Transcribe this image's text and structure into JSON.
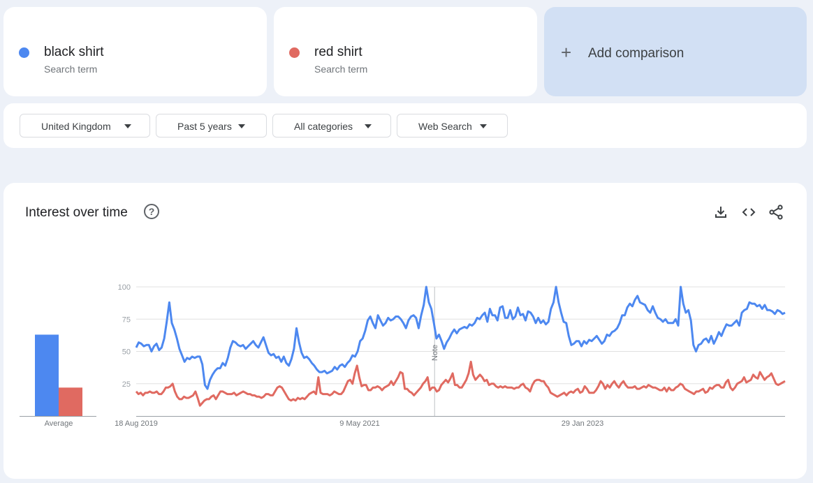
{
  "terms": [
    {
      "name": "black shirt",
      "kind": "Search term",
      "color": "#4d88f0"
    },
    {
      "name": "red shirt",
      "kind": "Search term",
      "color": "#e06a61"
    }
  ],
  "add_comparison": {
    "icon": "plus-icon",
    "label": "Add comparison"
  },
  "filters": {
    "region": "United Kingdom",
    "time": "Past 5 years",
    "category": "All categories",
    "search_type": "Web Search"
  },
  "chart_panel": {
    "title": "Interest over time",
    "help_icon": "help-icon",
    "actions": [
      "download-icon",
      "embed-code-icon",
      "share-icon"
    ]
  },
  "chart_data": [
    {
      "type": "bar",
      "categories": [
        "Average"
      ],
      "series": [
        {
          "name": "black shirt",
          "values": [
            63
          ]
        },
        {
          "name": "red shirt",
          "values": [
            22
          ]
        }
      ],
      "ylim": [
        0,
        100
      ]
    },
    {
      "type": "line",
      "x_tick_labels": [
        "18 Aug 2019",
        "9 May 2021",
        "29 Jan 2023"
      ],
      "y_tick_labels": [
        "25",
        "50",
        "75",
        "100"
      ],
      "ylim": [
        0,
        100
      ],
      "grid": true,
      "annotation": {
        "label": "Note",
        "position": 0.49
      },
      "series": [
        {
          "name": "black shirt",
          "values": [
            53,
            57,
            56,
            54,
            55,
            55,
            50,
            54,
            56,
            51,
            53,
            60,
            73,
            88,
            72,
            67,
            60,
            52,
            47,
            42,
            45,
            44,
            46,
            45,
            46,
            46,
            40,
            24,
            21,
            28,
            32,
            35,
            37,
            37,
            41,
            39,
            45,
            53,
            58,
            57,
            55,
            54,
            55,
            52,
            54,
            56,
            58,
            55,
            53,
            57,
            61,
            55,
            49,
            47,
            48,
            45,
            46,
            42,
            46,
            41,
            39,
            44,
            52,
            68,
            57,
            49,
            45,
            46,
            44,
            41,
            39,
            36,
            34,
            34,
            35,
            33,
            34,
            35,
            38,
            36,
            39,
            40,
            38,
            41,
            43,
            47,
            46,
            50,
            58,
            60,
            66,
            74,
            77,
            72,
            68,
            78,
            74,
            70,
            72,
            76,
            74,
            75,
            77,
            77,
            75,
            72,
            68,
            74,
            77,
            78,
            76,
            68,
            78,
            86,
            100,
            88,
            83,
            72,
            60,
            63,
            58,
            52,
            57,
            60,
            64,
            67,
            64,
            67,
            68,
            69,
            68,
            71,
            70,
            72,
            76,
            75,
            78,
            80,
            73,
            83,
            78,
            78,
            74,
            84,
            85,
            76,
            76,
            82,
            75,
            77,
            84,
            78,
            79,
            74,
            81,
            80,
            77,
            72,
            76,
            72,
            74,
            71,
            73,
            83,
            88,
            100,
            88,
            80,
            73,
            72,
            62,
            55,
            56,
            58,
            58,
            54,
            58,
            56,
            59,
            58,
            60,
            62,
            59,
            56,
            58,
            63,
            62,
            65,
            66,
            68,
            72,
            78,
            78,
            84,
            87,
            85,
            90,
            93,
            88,
            87,
            86,
            82,
            80,
            85,
            80,
            76,
            75,
            73,
            75,
            72,
            72,
            72,
            75,
            70,
            100,
            87,
            80,
            82,
            74,
            55,
            50,
            55,
            56,
            59,
            60,
            57,
            62,
            56,
            60,
            65,
            62,
            67,
            71,
            70,
            70,
            72,
            74,
            70,
            80,
            82,
            83,
            88,
            87,
            87,
            85,
            86,
            83,
            86,
            82,
            82,
            81,
            79,
            82,
            81,
            79,
            80
          ]
        },
        {
          "name": "red shirt",
          "values": [
            19,
            17,
            18,
            16,
            18,
            18,
            19,
            18,
            18,
            19,
            17,
            17,
            19,
            22,
            22,
            23,
            25,
            19,
            15,
            13,
            13,
            15,
            14,
            14,
            15,
            16,
            19,
            14,
            8,
            10,
            12,
            13,
            13,
            15,
            16,
            13,
            16,
            19,
            19,
            18,
            17,
            17,
            17,
            18,
            16,
            17,
            18,
            19,
            18,
            17,
            17,
            16,
            16,
            15,
            15,
            14,
            15,
            17,
            17,
            16,
            16,
            19,
            22,
            23,
            22,
            19,
            16,
            13,
            12,
            13,
            12,
            14,
            13,
            14,
            13,
            15,
            17,
            18,
            19,
            17,
            30,
            18,
            17,
            17,
            17,
            16,
            17,
            19,
            18,
            17,
            17,
            19,
            23,
            27,
            28,
            25,
            33,
            39,
            30,
            23,
            24,
            24,
            20,
            20,
            22,
            22,
            23,
            22,
            20,
            22,
            23,
            24,
            27,
            24,
            27,
            30,
            34,
            33,
            21,
            21,
            19,
            18,
            16,
            18,
            20,
            22,
            25,
            27,
            30,
            20,
            22,
            22,
            19,
            20,
            24,
            26,
            28,
            26,
            29,
            33,
            24,
            24,
            22,
            22,
            25,
            28,
            33,
            42,
            32,
            28,
            30,
            32,
            30,
            27,
            28,
            24,
            25,
            25,
            23,
            22,
            23,
            22,
            23,
            22,
            22,
            22,
            21,
            22,
            22,
            24,
            25,
            22,
            21,
            19,
            24,
            27,
            28,
            28,
            27,
            27,
            24,
            22,
            18,
            17,
            16,
            15,
            16,
            17,
            18,
            16,
            18,
            19,
            18,
            20,
            21,
            18,
            19,
            23,
            21,
            18,
            18,
            18,
            20,
            23,
            27,
            25,
            21,
            24,
            22,
            25,
            27,
            24,
            22,
            25,
            27,
            24,
            22,
            22,
            22,
            23,
            21,
            21,
            22,
            23,
            22,
            24,
            23,
            22,
            22,
            21,
            20,
            20,
            22,
            19,
            22,
            20,
            20,
            22,
            23,
            25,
            24,
            21,
            20,
            19,
            18,
            17,
            19,
            19,
            20,
            21,
            18,
            19,
            22,
            21,
            23,
            24,
            24,
            22,
            22,
            26,
            28,
            22,
            20,
            22,
            25,
            26,
            27,
            30,
            26,
            27,
            28,
            32,
            30,
            29,
            34,
            31,
            28,
            30,
            31,
            33,
            29,
            25,
            24,
            25,
            26,
            27
          ]
        }
      ]
    }
  ]
}
